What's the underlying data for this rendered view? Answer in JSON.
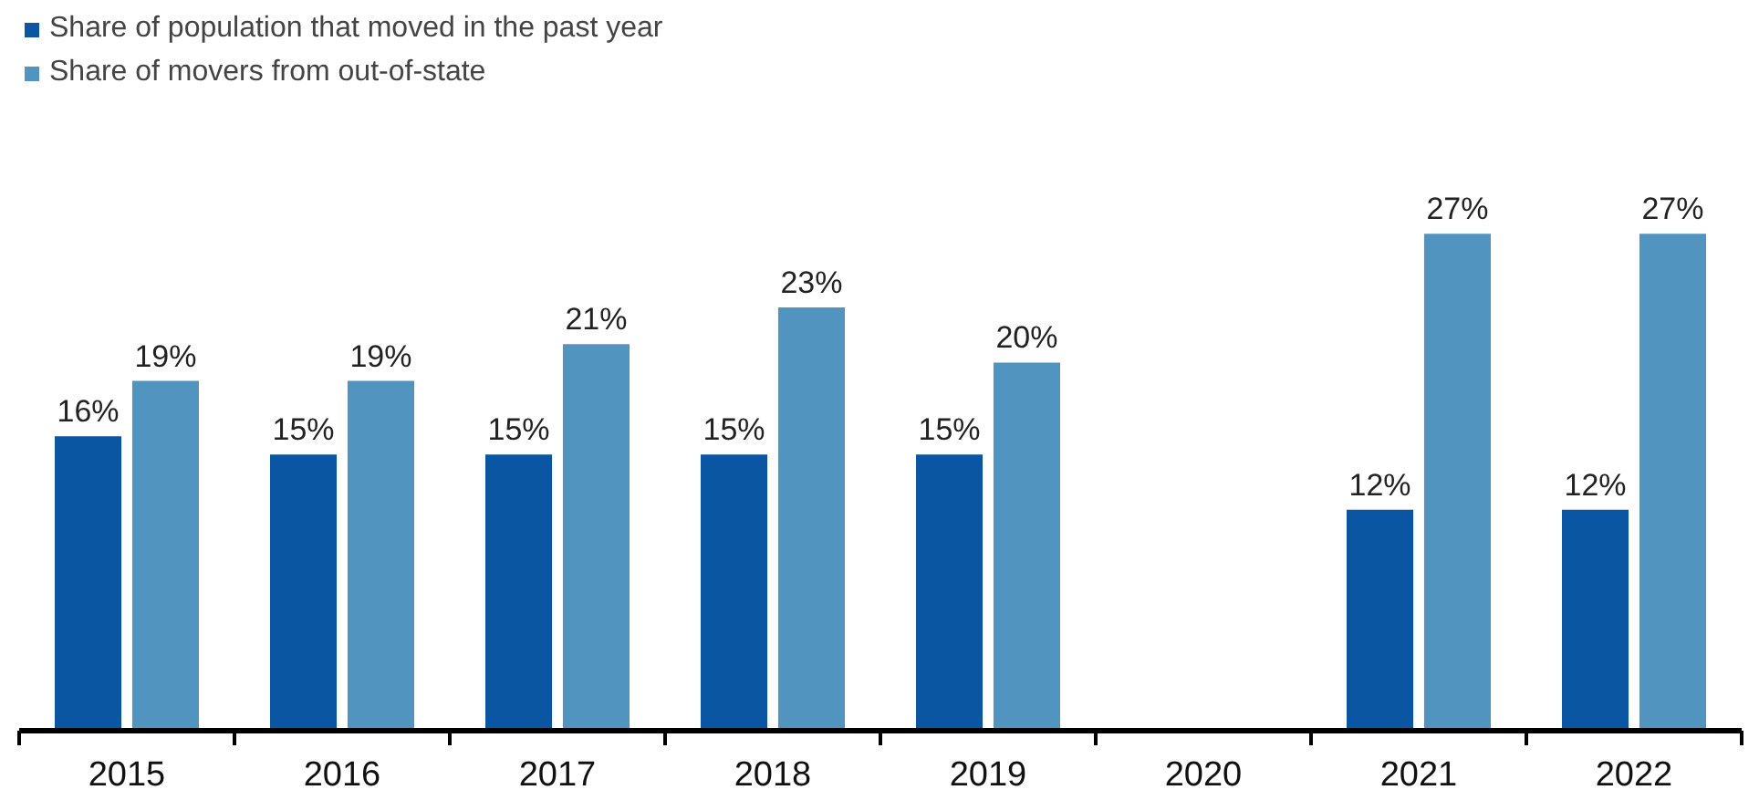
{
  "chart_data": {
    "type": "bar",
    "categories": [
      "2015",
      "2016",
      "2017",
      "2018",
      "2019",
      "2020",
      "2021",
      "2022"
    ],
    "series": [
      {
        "name": "Share of population that moved in the past year",
        "color": "#0b56a2",
        "values": [
          16,
          15,
          15,
          15,
          15,
          null,
          12,
          12
        ],
        "value_labels": [
          "16%",
          "15%",
          "15%",
          "15%",
          "15%",
          null,
          "12%",
          "12%"
        ]
      },
      {
        "name": "Share of movers from out-of-state",
        "color": "#5194c0",
        "values": [
          19,
          19,
          21,
          23,
          20,
          null,
          27,
          27
        ],
        "value_labels": [
          "19%",
          "19%",
          "21%",
          "23%",
          "20%",
          null,
          "27%",
          "27%"
        ]
      }
    ],
    "legend": "top left",
    "grid": false
  }
}
